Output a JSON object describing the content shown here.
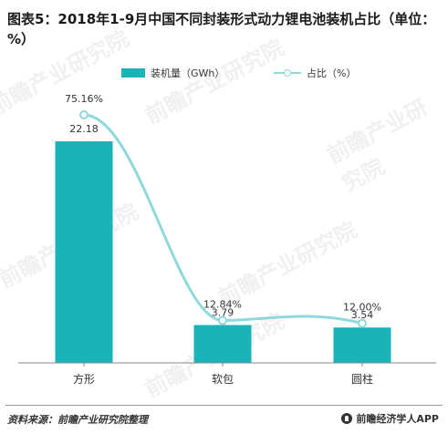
{
  "title": "图表5：2018年1-9月中国不同封装形式动力锂电池装机占比（单位：%）",
  "legend": {
    "bar_label": "装机量（GWh）",
    "line_label": "占比（%）"
  },
  "watermark_text": "前瞻产业研究院",
  "source": "资料来源：前瞻产业研究院整理",
  "brand": "前瞻经济学人APP",
  "colors": {
    "bar": "#1bb3b9",
    "line": "#8fd8dc",
    "text": "#333333"
  },
  "chart_data": {
    "type": "bar",
    "categories": [
      "方形",
      "软包",
      "圆柱"
    ],
    "series": [
      {
        "name": "装机量（GWh）",
        "type": "bar",
        "values": [
          22.18,
          3.79,
          3.54
        ],
        "labels": [
          "22.18",
          "3.79",
          "3.54"
        ]
      },
      {
        "name": "占比（%）",
        "type": "line",
        "values": [
          75.16,
          12.84,
          12.0
        ],
        "labels": [
          "75.16%",
          "12.84%",
          "12.00%"
        ]
      }
    ],
    "title": "图表5：2018年1-9月中国不同封装形式动力锂电池装机占比（单位：%）",
    "legend": "top-center",
    "grid": false
  }
}
